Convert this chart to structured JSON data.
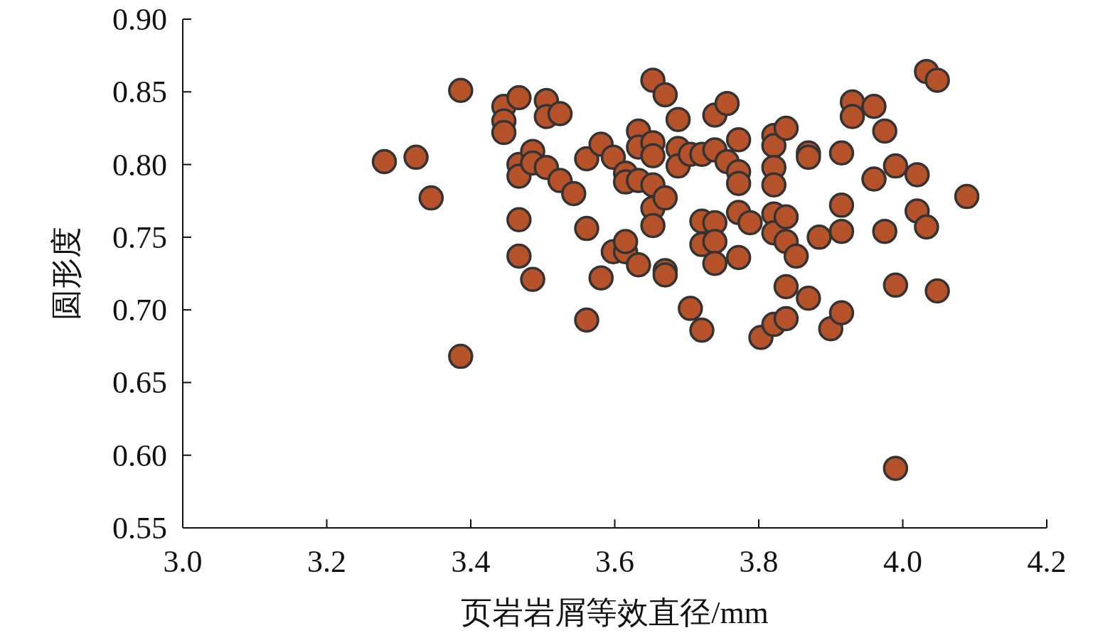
{
  "chart_data": {
    "type": "scatter",
    "xlabel": "页岩岩屑等效直径/mm",
    "ylabel": "圆形度",
    "color": "#b5522a",
    "marker": "circle",
    "xlim": [
      3.0,
      4.2
    ],
    "ylim": [
      0.55,
      0.9
    ],
    "xticks": [
      {
        "value": 3.0,
        "label": "3.0"
      },
      3.2,
      3.4,
      3.6,
      3.8,
      {
        "value": 4.0,
        "label": "4.0"
      },
      4.2
    ],
    "yticks": [
      {
        "value": 0.55,
        "label": "0.55"
      },
      {
        "value": 0.6,
        "label": "0.60"
      },
      {
        "value": 0.65,
        "label": "0.65"
      },
      {
        "value": 0.7,
        "label": "0.70"
      },
      {
        "value": 0.75,
        "label": "0.75"
      },
      {
        "value": 0.8,
        "label": "0.80"
      },
      {
        "value": 0.85,
        "label": "0.85"
      },
      {
        "value": 0.9,
        "label": "0.90"
      }
    ],
    "x": [
      3.28,
      3.324,
      3.345,
      3.386,
      3.386,
      3.446,
      3.446,
      3.446,
      3.467,
      3.467,
      3.467,
      3.467,
      3.467,
      3.486,
      3.486,
      3.486,
      3.505,
      3.505,
      3.505,
      3.524,
      3.524,
      3.543,
      3.561,
      3.561,
      3.561,
      3.581,
      3.581,
      3.598,
      3.598,
      3.615,
      3.615,
      3.615,
      3.615,
      3.633,
      3.633,
      3.633,
      3.633,
      3.653,
      3.653,
      3.653,
      3.653,
      3.653,
      3.653,
      3.67,
      3.67,
      3.67,
      3.67,
      3.688,
      3.688,
      3.688,
      3.705,
      3.705,
      3.721,
      3.721,
      3.721,
      3.721,
      3.739,
      3.739,
      3.739,
      3.739,
      3.739,
      3.756,
      3.756,
      3.772,
      3.772,
      3.772,
      3.772,
      3.772,
      3.788,
      3.803,
      3.821,
      3.821,
      3.821,
      3.821,
      3.821,
      3.821,
      3.821,
      3.838,
      3.838,
      3.838,
      3.838,
      3.838,
      3.852,
      3.869,
      3.869,
      3.869,
      3.884,
      3.9,
      3.915,
      3.915,
      3.915,
      3.915,
      3.93,
      3.93,
      3.96,
      3.96,
      3.975,
      3.975,
      3.99,
      3.99,
      3.99,
      4.02,
      4.02,
      4.033,
      4.033,
      4.048,
      4.048,
      4.089
    ],
    "values": [
      0.802,
      0.805,
      0.777,
      0.851,
      0.668,
      0.84,
      0.83,
      0.822,
      0.846,
      0.8,
      0.792,
      0.762,
      0.737,
      0.809,
      0.801,
      0.721,
      0.844,
      0.833,
      0.798,
      0.835,
      0.789,
      0.78,
      0.804,
      0.756,
      0.693,
      0.814,
      0.722,
      0.805,
      0.74,
      0.794,
      0.788,
      0.74,
      0.747,
      0.823,
      0.812,
      0.789,
      0.731,
      0.858,
      0.815,
      0.806,
      0.786,
      0.77,
      0.758,
      0.848,
      0.777,
      0.727,
      0.724,
      0.831,
      0.811,
      0.799,
      0.807,
      0.701,
      0.807,
      0.761,
      0.745,
      0.686,
      0.834,
      0.81,
      0.76,
      0.747,
      0.732,
      0.842,
      0.802,
      0.817,
      0.795,
      0.787,
      0.767,
      0.736,
      0.76,
      0.681,
      0.82,
      0.813,
      0.798,
      0.786,
      0.766,
      0.753,
      0.69,
      0.825,
      0.764,
      0.747,
      0.716,
      0.694,
      0.737,
      0.808,
      0.805,
      0.708,
      0.75,
      0.687,
      0.808,
      0.772,
      0.754,
      0.698,
      0.843,
      0.833,
      0.84,
      0.79,
      0.823,
      0.754,
      0.799,
      0.717,
      0.591,
      0.793,
      0.768,
      0.864,
      0.757,
      0.858,
      0.713,
      0.778
    ]
  }
}
